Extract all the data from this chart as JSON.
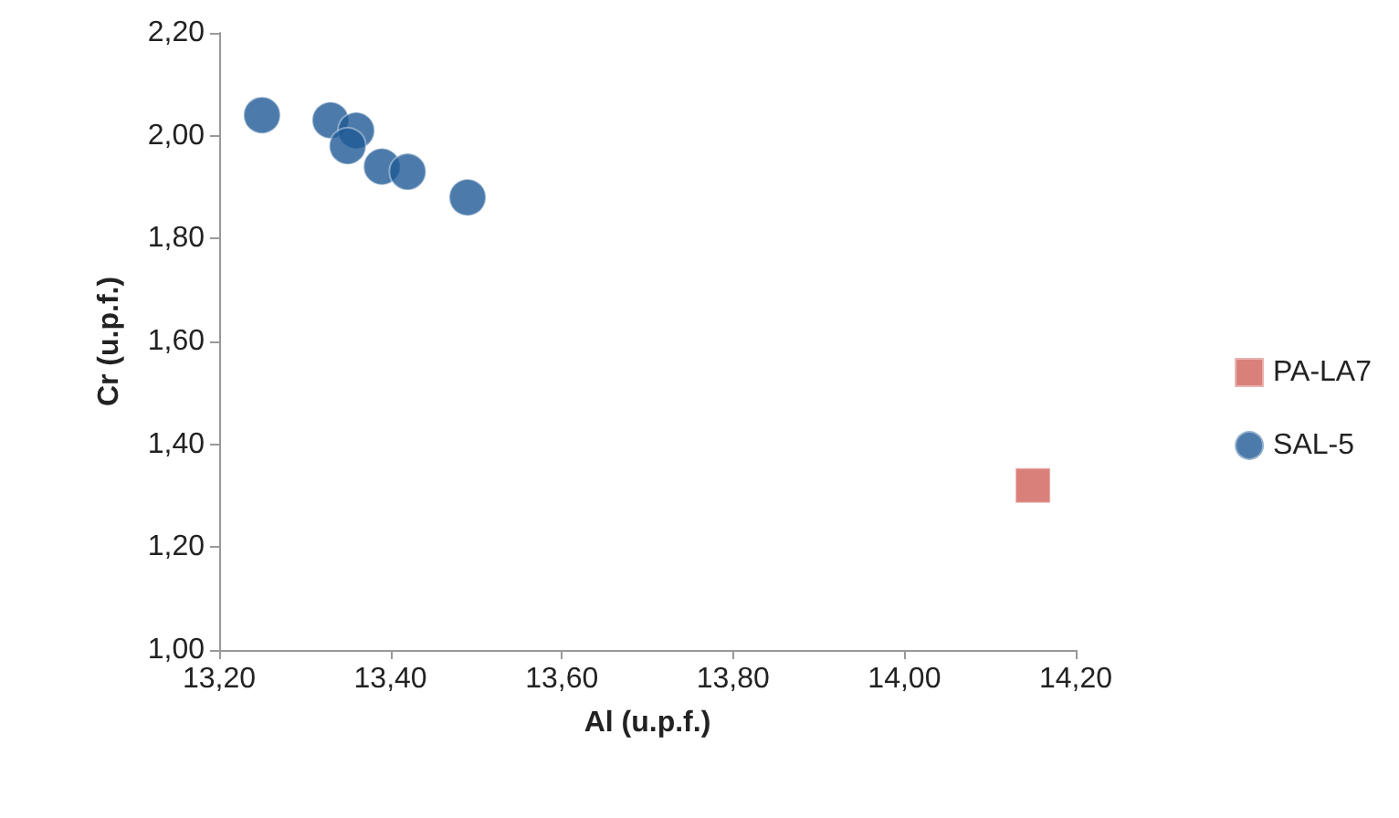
{
  "chart_data": {
    "type": "scatter",
    "xlabel": "Al (u.p.f.)",
    "ylabel": "Cr (u.p.f.)",
    "xlim": [
      13.2,
      14.2
    ],
    "xticks": [
      {
        "value": 13.2,
        "label": "13,20"
      },
      {
        "value": 13.4,
        "label": "13,40"
      },
      {
        "value": 13.6,
        "label": "13,60"
      },
      {
        "value": 13.8,
        "label": "13,80"
      },
      {
        "value": 14.0,
        "label": "14,00"
      },
      {
        "value": 14.2,
        "label": "14,20"
      }
    ],
    "ylim": [
      1.0,
      2.2
    ],
    "yticks": [
      {
        "value": 1.0,
        "label": "1,00"
      },
      {
        "value": 1.2,
        "label": "1,20"
      },
      {
        "value": 1.4,
        "label": "1,40"
      },
      {
        "value": 1.6,
        "label": "1,60"
      },
      {
        "value": 1.8,
        "label": "1,80"
      },
      {
        "value": 2.0,
        "label": "2,00"
      },
      {
        "value": 2.2,
        "label": "2,20"
      }
    ],
    "grid": false,
    "legend": "right",
    "series": [
      {
        "name": "PA-LA7",
        "color": "#d0605a",
        "marker": "square",
        "x": [
          14.15
        ],
        "values": [
          1.32
        ]
      },
      {
        "name": "SAL-5",
        "color": "#1f5a96",
        "marker": "circle",
        "x": [
          13.25,
          13.33,
          13.36,
          13.35,
          13.39,
          13.42,
          13.49
        ],
        "values": [
          2.04,
          2.03,
          2.01,
          1.98,
          1.94,
          1.93,
          1.88
        ]
      }
    ]
  }
}
